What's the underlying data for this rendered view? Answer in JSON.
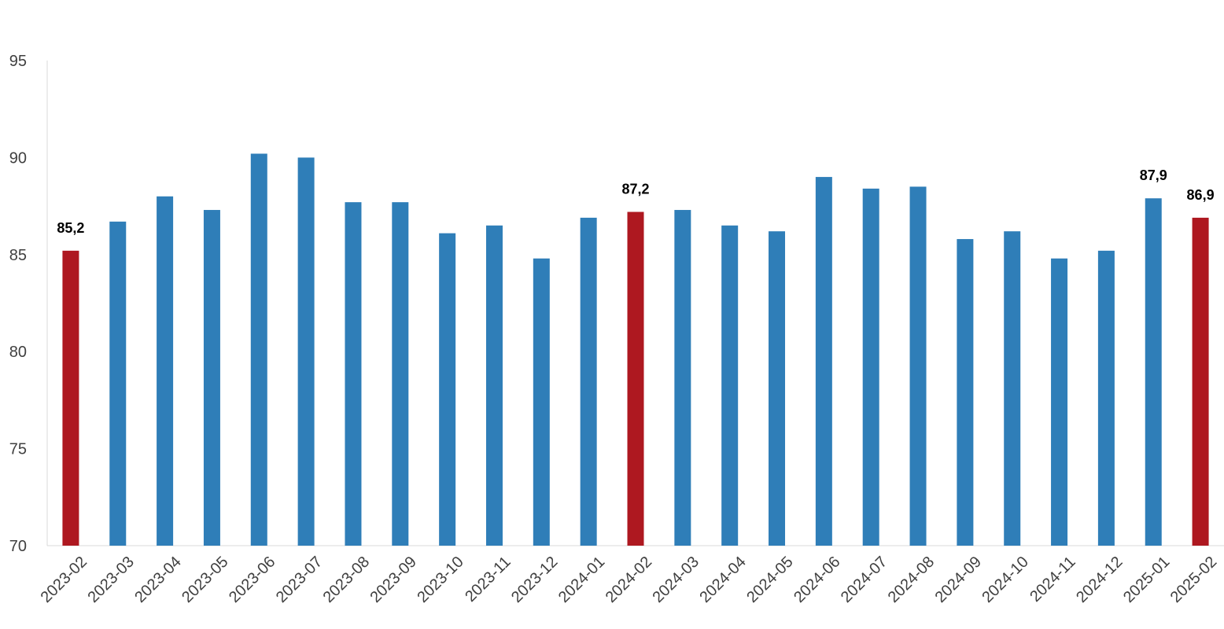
{
  "chart_data": {
    "type": "bar",
    "categories": [
      "2023-02",
      "2023-03",
      "2023-04",
      "2023-05",
      "2023-06",
      "2023-07",
      "2023-08",
      "2023-09",
      "2023-10",
      "2023-11",
      "2023-12",
      "2024-01",
      "2024-02",
      "2024-03",
      "2024-04",
      "2024-05",
      "2024-06",
      "2024-07",
      "2024-08",
      "2024-09",
      "2024-10",
      "2024-11",
      "2024-12",
      "2025-01",
      "2025-02"
    ],
    "series": [
      {
        "values": [
          85.2,
          86.7,
          88.0,
          87.3,
          90.2,
          90.0,
          87.7,
          87.7,
          86.1,
          86.5,
          84.8,
          86.9,
          87.2,
          87.3,
          86.5,
          86.2,
          89.0,
          88.4,
          88.5,
          85.8,
          86.2,
          84.8,
          85.2,
          87.9,
          86.9
        ]
      }
    ],
    "highlighted_categories": [
      "2023-02",
      "2024-02",
      "2025-02"
    ],
    "data_labels": [
      {
        "category": "2023-02",
        "text": "85,2"
      },
      {
        "category": "2024-02",
        "text": "87,2"
      },
      {
        "category": "2025-01",
        "text": "87,9"
      },
      {
        "category": "2025-02",
        "text": "86,9"
      }
    ],
    "ylim": [
      70,
      95
    ],
    "yticks": [
      70,
      75,
      80,
      85,
      90,
      95
    ],
    "title": "",
    "xlabel": "",
    "ylabel": "",
    "grid": false,
    "colors": {
      "default_bar": "#2F7EB8",
      "highlight_bar": "#AE1820",
      "axis": "#D9D9D9"
    }
  }
}
